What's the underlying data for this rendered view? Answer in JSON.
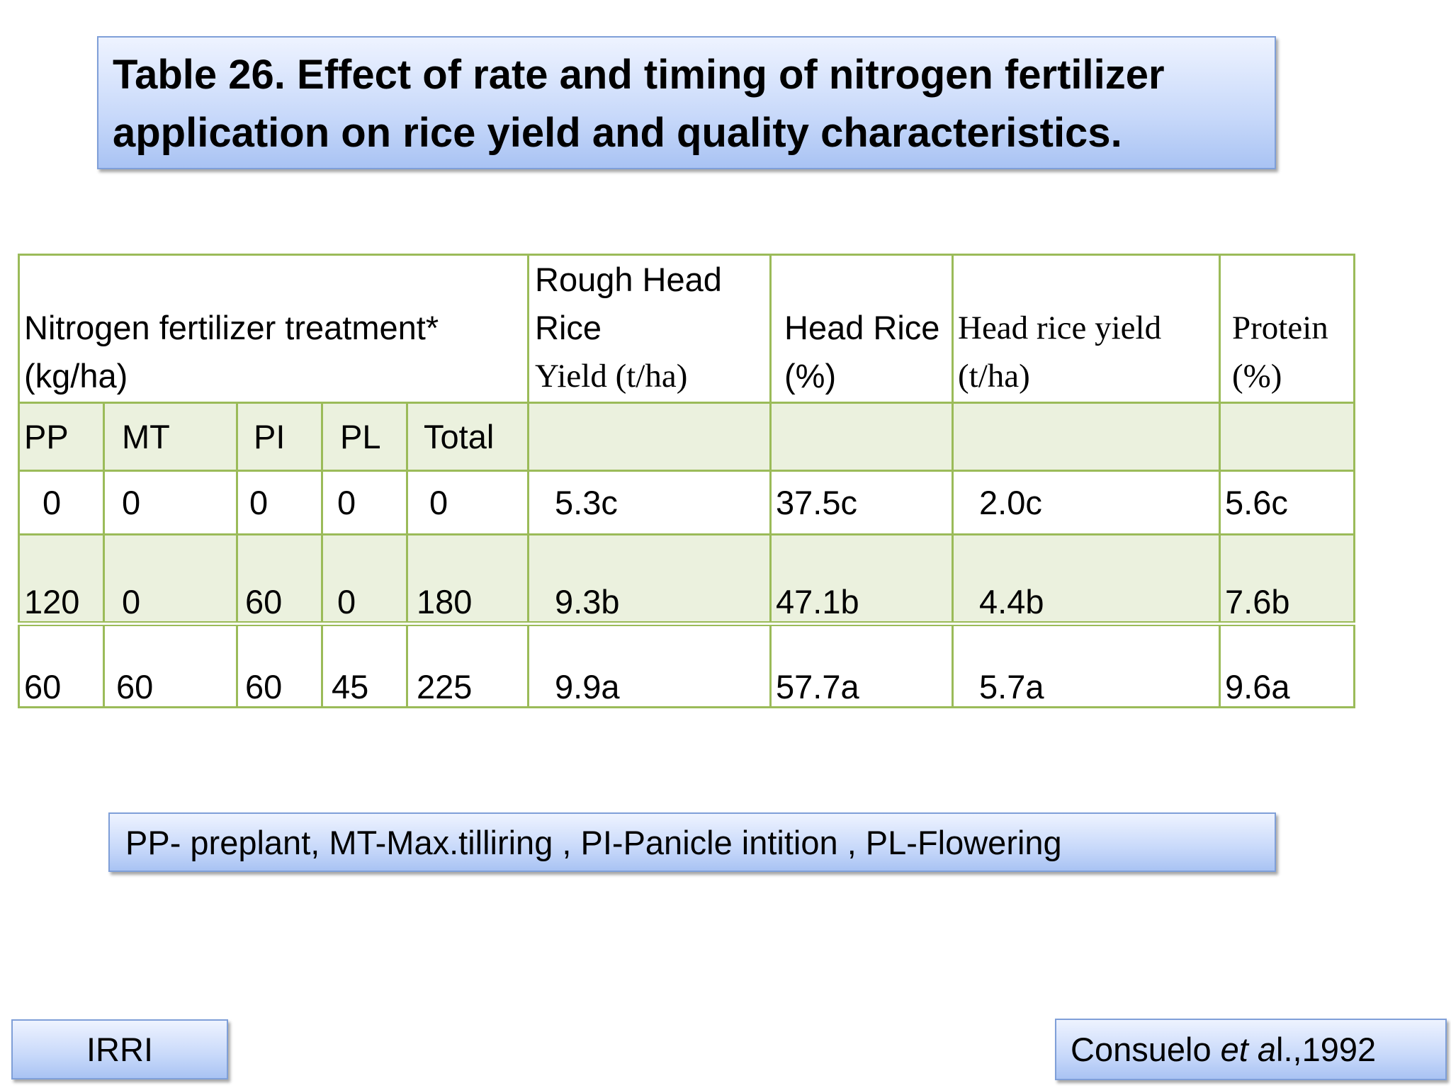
{
  "title": "Table 26. Effect of rate and timing of nitrogen fertilizer application on rice yield and quality characteristics.",
  "table": {
    "header": {
      "treatment_line1": "Nitrogen fertilizer treatment*",
      "treatment_line2": "(kg/ha)",
      "rough_line1": "Rough Head",
      "rough_line2": "Rice",
      "rough_line3": "Yield (t/ha)",
      "headrice_line1": "Head Rice",
      "headrice_line2": "(%)",
      "hry_line1": "Head rice yield",
      "hry_line2": "(t/ha)",
      "protein_line1": "Protein",
      "protein_line2": "(%)"
    },
    "subheaders": [
      "PP",
      "MT",
      "PI",
      "PL",
      "Total"
    ],
    "rows": [
      [
        "0",
        "0",
        "0",
        "0",
        "0",
        "5.3c",
        "37.5c",
        "2.0c",
        "5.6c"
      ],
      [
        "120",
        "0",
        "60",
        "0",
        "180",
        "9.3b",
        "47.1b",
        "4.4b",
        "7.6b"
      ],
      [
        "60",
        "60",
        "60",
        "45",
        "225",
        "9.9a",
        "57.7a",
        "5.7a",
        "9.6a"
      ]
    ]
  },
  "note": "PP- preplant, MT-Max.tilliring , PI-Panicle intition , PL-Flowering",
  "source_left": "IRRI",
  "citation": {
    "author": "Consuelo ",
    "etal": "et a",
    "etal_tail": "l.",
    "year": ",1992"
  },
  "colors": {
    "table_border": "#9bbb59",
    "band_fill": "#ebf1de",
    "box_fill": "#c8d9fa",
    "box_border": "#7f9fd8"
  }
}
